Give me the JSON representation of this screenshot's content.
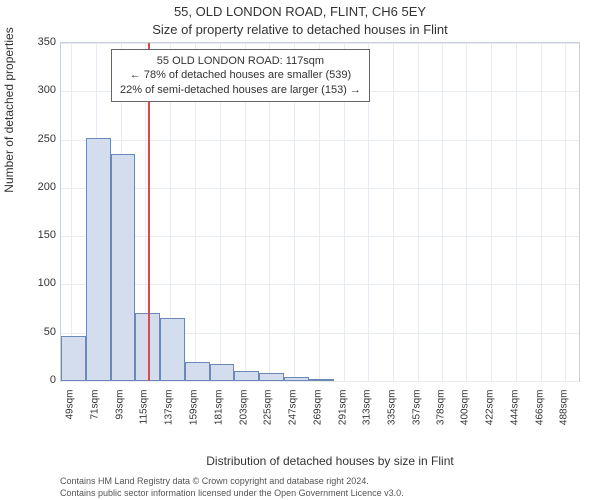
{
  "title_line1": "55, OLD LONDON ROAD, FLINT, CH6 5EY",
  "title_line2": "Size of property relative to detached houses in Flint",
  "ylabel": "Number of detached properties",
  "xlabel": "Distribution of detached houses by size in Flint",
  "footer1": "Contains HM Land Registry data © Crown copyright and database right 2024.",
  "footer2": "Contains public sector information licensed under the Open Government Licence v3.0.",
  "annotation": {
    "line1": "55 OLD LONDON ROAD: 117sqm",
    "line2": "← 78% of detached houses are smaller (539)",
    "line3": "22% of semi-detached houses are larger (153) →",
    "border_color": "#666666",
    "bg_color": "#ffffff",
    "fontsize": 11
  },
  "chart": {
    "type": "histogram",
    "plot_bg": "#ffffff",
    "axis_color": "#c7d0db",
    "grid_color": "#e8ecf1",
    "bar_fill": "#d3ddee",
    "bar_stroke": "#6a88b8",
    "refline_color": "#d94a4a",
    "refline_x": 117,
    "xlim": [
      40,
      500
    ],
    "ylim": [
      0,
      350
    ],
    "yticks": [
      0,
      50,
      100,
      150,
      200,
      250,
      300,
      350
    ],
    "xtick_values": [
      49,
      71,
      93,
      115,
      137,
      159,
      181,
      203,
      225,
      247,
      269,
      291,
      313,
      335,
      357,
      378,
      400,
      422,
      444,
      466,
      488
    ],
    "xtick_suffix": "sqm",
    "bin_width": 22,
    "bins": [
      {
        "start": 40,
        "count": 47
      },
      {
        "start": 62,
        "count": 252
      },
      {
        "start": 84,
        "count": 235
      },
      {
        "start": 106,
        "count": 70
      },
      {
        "start": 128,
        "count": 65
      },
      {
        "start": 150,
        "count": 20
      },
      {
        "start": 172,
        "count": 18
      },
      {
        "start": 194,
        "count": 10
      },
      {
        "start": 216,
        "count": 8
      },
      {
        "start": 238,
        "count": 4
      },
      {
        "start": 260,
        "count": 2
      }
    ]
  },
  "fonts": {
    "title_size": 13,
    "label_size": 12,
    "tick_size": 11,
    "footer_size": 9
  },
  "colors": {
    "text": "#333333",
    "footer_text": "#555555",
    "background": "#ffffff"
  }
}
